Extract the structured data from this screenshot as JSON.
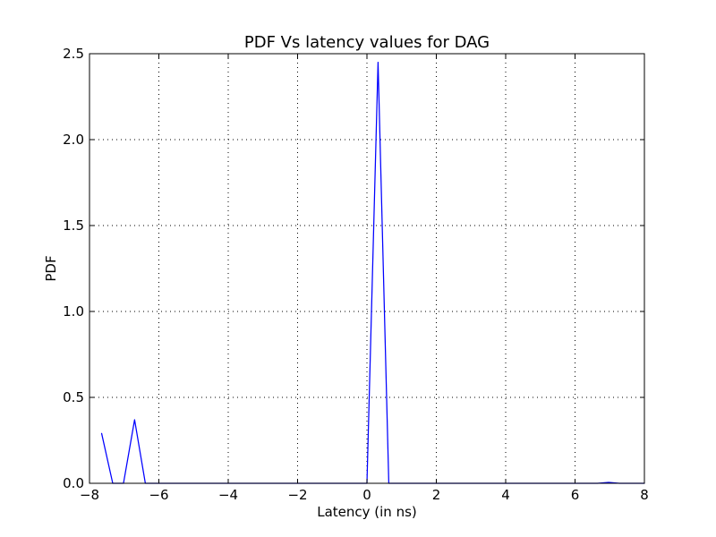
{
  "colors": {
    "series": "#0000ff",
    "axis": "#000000",
    "background": "#ffffff"
  },
  "chart_data": {
    "type": "line",
    "title": "PDF Vs latency values for DAG",
    "xlabel": "Latency (in ns)",
    "ylabel": "PDF",
    "xlim": [
      -8,
      8
    ],
    "ylim": [
      0,
      2.5
    ],
    "grid": true,
    "legend": "none",
    "xticks": [
      -8,
      -6,
      -4,
      -2,
      0,
      2,
      4,
      6,
      8
    ],
    "xtick_labels": [
      "−8",
      "−6",
      "−4",
      "−2",
      "0",
      "2",
      "4",
      "6",
      "8"
    ],
    "yticks": [
      0,
      0.5,
      1.0,
      1.5,
      2.0,
      2.5
    ],
    "ytick_labels": [
      "0.0",
      "0.5",
      "1.0",
      "1.5",
      "2.0",
      "2.5"
    ],
    "series": [
      {
        "color": "#0000ff",
        "x": [
          -7.65,
          -7.33,
          -7.02,
          -6.7,
          -6.39,
          -6.07,
          -5.75,
          -5.43,
          -5.12,
          -4.8,
          -4.49,
          -4.17,
          -3.85,
          -3.54,
          -3.22,
          -2.91,
          -2.59,
          -2.27,
          -1.96,
          -1.64,
          -1.32,
          -1.01,
          -0.69,
          -0.37,
          -0.06,
          0.0,
          0.32,
          0.63,
          0.95,
          1.27,
          1.58,
          1.9,
          2.22,
          2.53,
          2.85,
          3.17,
          3.48,
          3.8,
          4.12,
          4.43,
          4.75,
          5.07,
          5.38,
          5.7,
          6.02,
          6.33,
          6.65,
          6.97,
          7.28,
          7.6,
          8.0
        ],
        "y": [
          0.29,
          0.0,
          0.0,
          0.37,
          0.0,
          0.0,
          0.0,
          0.0,
          0.0,
          0.0,
          0.0,
          0.0,
          0.0,
          0.0,
          0.0,
          0.0,
          0.0,
          0.0,
          0.0,
          0.0,
          0.0,
          0.0,
          0.0,
          0.0,
          0.0,
          0.0,
          2.45,
          0.0,
          0.0,
          0.0,
          0.0,
          0.0,
          0.0,
          0.0,
          0.0,
          0.0,
          0.0,
          0.0,
          0.0,
          0.0,
          0.0,
          0.0,
          0.0,
          0.0,
          0.0,
          0.0,
          0.0,
          0.005,
          0.0,
          0.0,
          0.0
        ]
      }
    ]
  }
}
